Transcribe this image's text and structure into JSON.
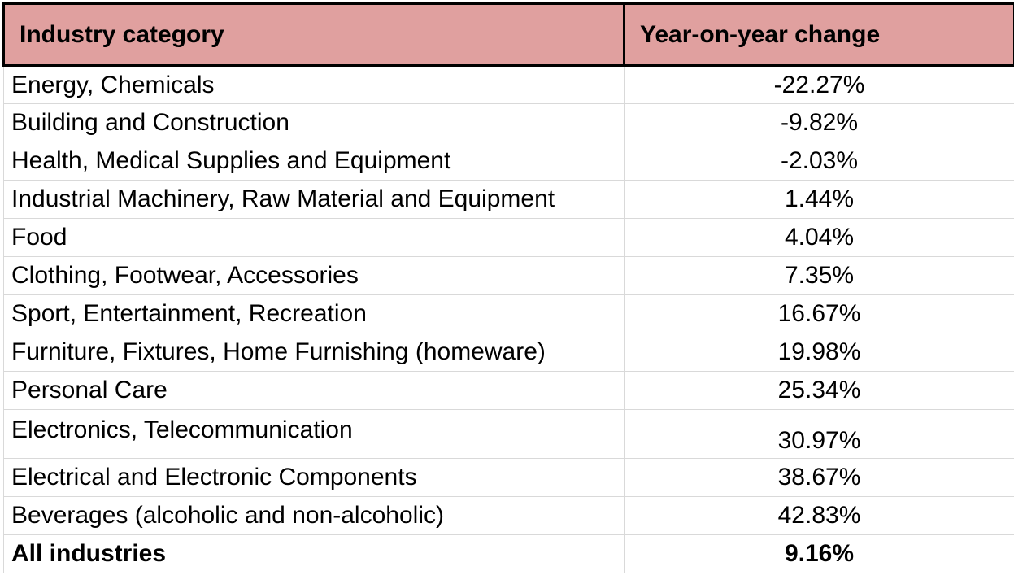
{
  "table": {
    "headers": {
      "category": "Industry category",
      "change": "Year-on-year change"
    },
    "rows": [
      {
        "category": "Energy, Chemicals",
        "change": "-22.27%"
      },
      {
        "category": "Building and Construction",
        "change": "-9.82%"
      },
      {
        "category": "Health, Medical Supplies and Equipment",
        "change": "-2.03%"
      },
      {
        "category": "Industrial Machinery, Raw Material and Equipment",
        "change": "1.44%"
      },
      {
        "category": "Food",
        "change": "4.04%"
      },
      {
        "category": "Clothing, Footwear, Accessories",
        "change": "7.35%"
      },
      {
        "category": "Sport, Entertainment, Recreation",
        "change": "16.67%"
      },
      {
        "category": "Furniture, Fixtures, Home Furnishing (homeware)",
        "change": "19.98%"
      },
      {
        "category": "Personal Care",
        "change": "25.34%"
      },
      {
        "category": "Electronics, Telecommunication",
        "change": "30.97%"
      },
      {
        "category": "Electrical and Electronic Components",
        "change": "38.67%"
      },
      {
        "category": "Beverages (alcoholic and non-alcoholic)",
        "change": "42.83%"
      }
    ],
    "total": {
      "category": "All industries",
      "change": "9.16%"
    }
  },
  "colors": {
    "header_background": "#e0a09f",
    "grid_line": "#d9d9d9"
  }
}
